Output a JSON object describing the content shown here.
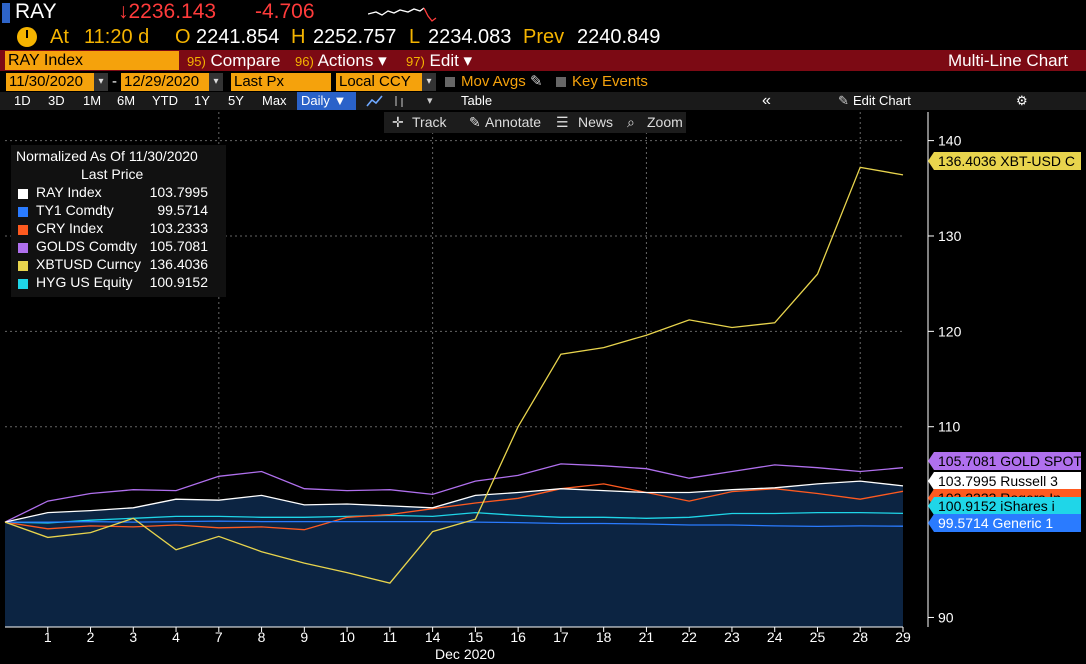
{
  "ticker": {
    "symbol": "RAY",
    "price": "↓2236.143",
    "change": "-4.706"
  },
  "quote": {
    "at_label": "At",
    "time": "11:20 d",
    "open_label": "O",
    "open": "2241.854",
    "high_label": "H",
    "high": "2252.757",
    "low_label": "L",
    "low": "2234.083",
    "prev_label": "Prev",
    "prev": "2240.849"
  },
  "function_bar": {
    "security": "RAY Index",
    "compare": {
      "num": "95)",
      "label": "Compare"
    },
    "actions": {
      "num": "96)",
      "label": "Actions ▾"
    },
    "edit": {
      "num": "97)",
      "label": "Edit ▾"
    },
    "chart_type": "Multi-Line Chart"
  },
  "range": {
    "start": "11/30/2020",
    "sep": "-",
    "end": "12/29/2020",
    "field": "Last Px",
    "currency": "Local CCY",
    "mov_avgs": "Mov Avgs",
    "key_events": "Key Events"
  },
  "periods": [
    "1D",
    "3D",
    "1M",
    "6M",
    "YTD",
    "1Y",
    "5Y",
    "Max"
  ],
  "frequency": "Daily ▼",
  "period_bar": {
    "table": "Table",
    "collapse": "«",
    "edit_chart": "Edit Chart",
    "settings": "⚙"
  },
  "toolbar": {
    "track": "Track",
    "annotate": "Annotate",
    "news": "News",
    "zoom": "Zoom"
  },
  "legend": {
    "title": "Normalized As Of 11/30/2020",
    "subtitle": "Last Price"
  },
  "chart_data": {
    "type": "line",
    "x": [
      "30",
      "1",
      "2",
      "3",
      "4",
      "7",
      "8",
      "9",
      "10",
      "11",
      "14",
      "15",
      "16",
      "17",
      "18",
      "21",
      "22",
      "23",
      "24",
      "25",
      "28",
      "29"
    ],
    "x_tick_labels": [
      "1",
      "2",
      "3",
      "4",
      "7",
      "8",
      "9",
      "10",
      "11",
      "14",
      "15",
      "16",
      "17",
      "18",
      "21",
      "22",
      "23",
      "24",
      "25",
      "28",
      "29"
    ],
    "xlabel": "Dec 2020",
    "ylim": [
      89,
      143
    ],
    "y_ticks": [
      90,
      110,
      120,
      130,
      140
    ],
    "grid": true,
    "series": [
      {
        "name": "RAY Index",
        "last": "103.7995",
        "color": "#ffffff",
        "tag": "103.7995 Russell 3",
        "values": [
          100,
          101,
          101.2,
          101.5,
          102.4,
          102.3,
          102.8,
          101.8,
          101.9,
          101.7,
          101.5,
          102.8,
          103.1,
          103.5,
          103.3,
          103.1,
          103.1,
          103.4,
          103.6,
          104,
          104.3,
          103.8
        ]
      },
      {
        "name": "TY1 Comdty",
        "last": "99.5714",
        "color": "#2a7bff",
        "tag": "99.5714  Generic 1",
        "values": [
          100,
          100,
          100.05,
          100,
          100.05,
          100.1,
          100.05,
          100.05,
          100.05,
          100.05,
          100.05,
          100,
          99.95,
          99.85,
          99.85,
          99.8,
          99.7,
          99.7,
          99.6,
          99.55,
          99.6,
          99.5714
        ]
      },
      {
        "name": "CRY Index",
        "last": "103.2333",
        "color": "#ff5a1f",
        "tag": "",
        "values": [
          100,
          99.3,
          99.6,
          99.5,
          99.7,
          99.4,
          99.5,
          99.2,
          100.5,
          100.8,
          101.4,
          102,
          102.5,
          103.5,
          104,
          103.1,
          102.2,
          103.2,
          103.5,
          103,
          102.4,
          103.2333
        ]
      },
      {
        "name": "GOLDS Comdty",
        "last": "105.7081",
        "color": "#b070ee",
        "tag": "105.7081 GOLD SPOT",
        "values": [
          100,
          102.2,
          103,
          103.4,
          103.3,
          104.8,
          105.3,
          103.5,
          103.3,
          103.4,
          102.9,
          104.3,
          104.9,
          106.1,
          105.9,
          105.6,
          104.6,
          105.3,
          106,
          105.7,
          105.3,
          105.7081
        ]
      },
      {
        "name": "XBTUSD Curncy",
        "last": "136.4036",
        "color": "#e8d44d",
        "tag": "136.4036 XBT-USD C",
        "values": [
          100,
          98.4,
          98.9,
          100.4,
          97.1,
          98.5,
          96.9,
          95.7,
          94.7,
          93.6,
          99,
          100.3,
          110,
          117.6,
          118.3,
          119.6,
          121.2,
          120.4,
          120.9,
          126,
          137.2,
          136.4036
        ]
      },
      {
        "name": "HYG US Equity",
        "last": "100.9152",
        "color": "#1fd6e8",
        "tag": "100.9152 iShares i",
        "values": [
          100,
          99.9,
          100.2,
          100.4,
          100.6,
          100.6,
          100.5,
          100.5,
          100.6,
          100.7,
          100.6,
          101,
          100.7,
          100.5,
          100.5,
          100.4,
          100.5,
          100.9,
          100.9,
          101,
          101,
          100.9152
        ]
      }
    ],
    "hidden_tag": "103.2333 Rogers In"
  }
}
